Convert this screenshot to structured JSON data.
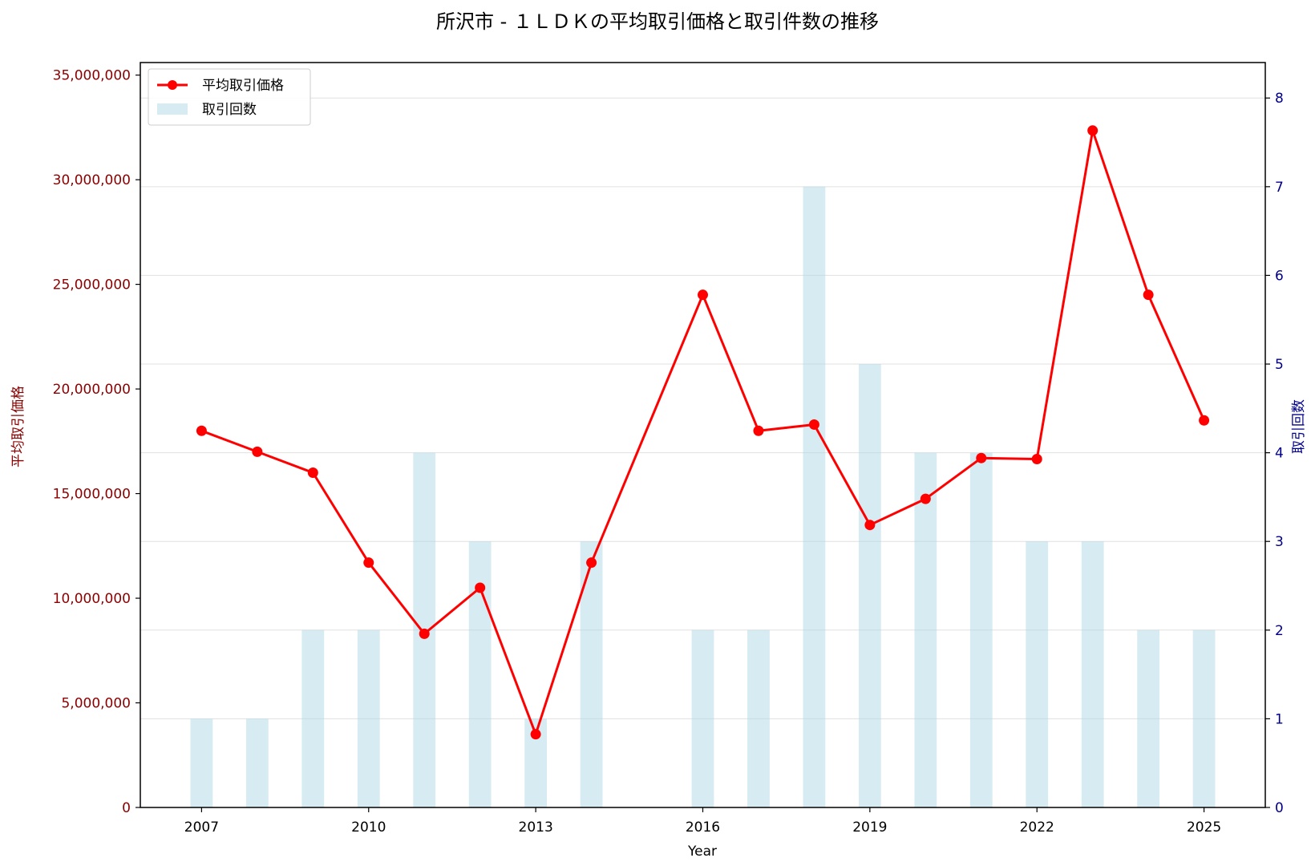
{
  "chart_data": {
    "type": "bar+line",
    "title": "所沢市 - １ＬＤＫの平均取引価格と取引件数の推移",
    "xlabel": "Year",
    "ylabel_left": "平均取引価格",
    "ylabel_right": "取引回数",
    "x_ticks": [
      "2007",
      "2010",
      "2013",
      "2016",
      "2019",
      "2022",
      "2025"
    ],
    "x_range": [
      2005.9,
      2026.1
    ],
    "y_left_range": [
      0,
      35600000
    ],
    "y_left_ticks": [
      "0",
      "5,000,000",
      "10,000,000",
      "15,000,000",
      "20,000,000",
      "25,000,000",
      "30,000,000",
      "35,000,000"
    ],
    "y_left_tick_values": [
      0,
      5000000,
      10000000,
      15000000,
      20000000,
      25000000,
      30000000,
      35000000
    ],
    "y_right_range": [
      0,
      8.4
    ],
    "y_right_ticks": [
      "0",
      "1",
      "2",
      "3",
      "4",
      "5",
      "6",
      "7",
      "8"
    ],
    "y_right_tick_values": [
      0,
      1,
      2,
      3,
      4,
      5,
      6,
      7,
      8
    ],
    "grid": true,
    "legend_position": "top-left",
    "colors": {
      "line": "#ff0000",
      "bars": "#add8e6",
      "left_axis": "#8b0000",
      "right_axis": "#00008b",
      "grid": "#e0e0e0"
    },
    "series": [
      {
        "name": "平均取引価格",
        "type": "line",
        "axis": "left",
        "x": [
          2007,
          2008,
          2009,
          2010,
          2011,
          2012,
          2013,
          2014,
          2016,
          2017,
          2018,
          2019,
          2020,
          2021,
          2022,
          2023,
          2024,
          2025
        ],
        "values": [
          18000000,
          17000000,
          16000000,
          11700000,
          8300000,
          10500000,
          3500000,
          11700000,
          24500000,
          18000000,
          18300000,
          13500000,
          14750000,
          16700000,
          16650000,
          32350000,
          24500000,
          18500000
        ]
      },
      {
        "name": "取引回数",
        "type": "bar",
        "axis": "right",
        "x": [
          2007,
          2008,
          2009,
          2010,
          2011,
          2012,
          2013,
          2014,
          2016,
          2017,
          2018,
          2019,
          2020,
          2021,
          2022,
          2023,
          2024,
          2025
        ],
        "values": [
          1,
          1,
          2,
          2,
          4,
          3,
          1,
          3,
          2,
          2,
          7,
          5,
          4,
          4,
          3,
          3,
          2,
          2
        ]
      }
    ]
  }
}
